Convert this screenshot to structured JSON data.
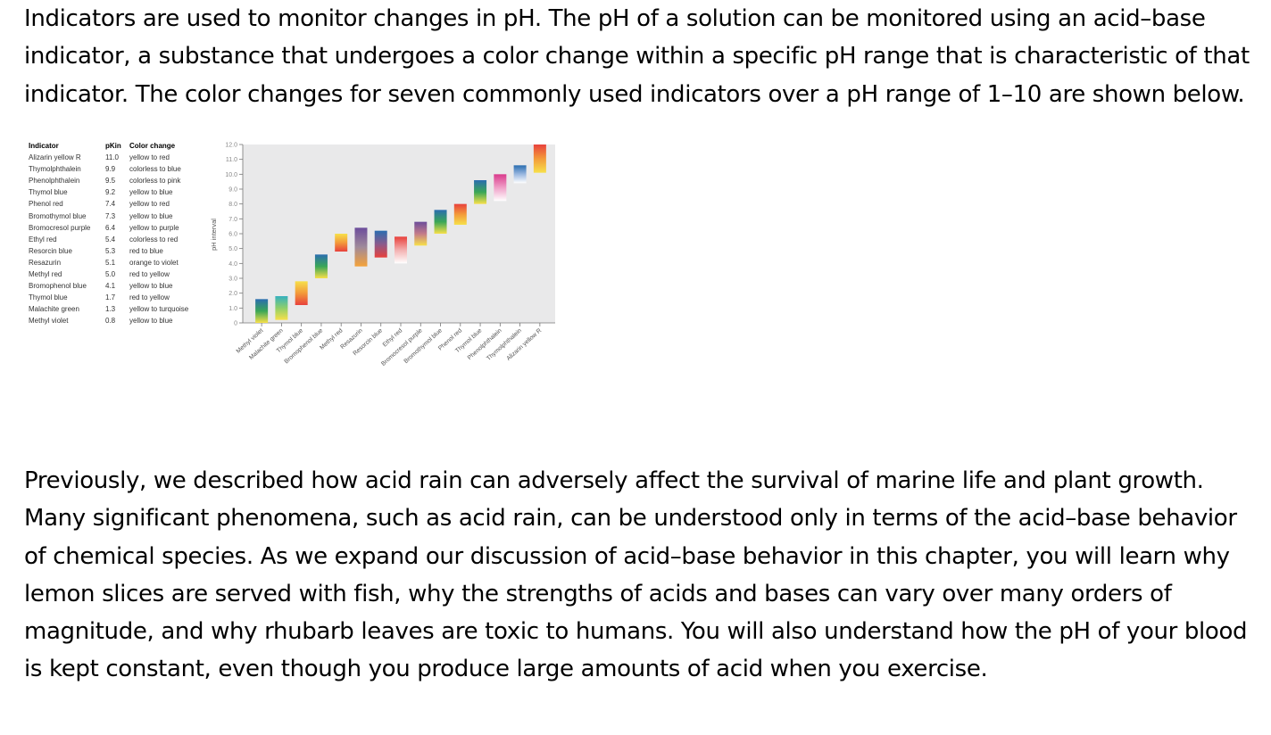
{
  "paragraph_1": "Indicators are used to monitor changes in pH. The pH of a solution can be monitored using an acid–base indicator, a substance that undergoes a color change within a specific pH range that is characteristic of that indicator. The color changes for seven commonly used indicators over a pH range of 1–10 are shown below.",
  "paragraph_2": "Previously, we described how acid rain can adversely affect the survival of marine life and plant growth. Many significant phenomena, such as acid rain, can be understood only in terms of the acid–base behavior of chemical species. As we expand our discussion of acid–base behavior in this chapter, you will learn why lemon slices are served with fish, why the strengths of acids and bases can vary over many orders of magnitude, and why rhubarb leaves are toxic to humans. You will also understand how the pH of your blood is kept constant, even though you produce large amounts of acid when you exercise.",
  "table": {
    "headers": [
      "Indicator",
      "pKin",
      "Color change"
    ],
    "rows": [
      [
        "Alizarin yellow R",
        "11.0",
        "yellow to red"
      ],
      [
        "Thymolphthalein",
        "9.9",
        "colorless to blue"
      ],
      [
        "Phenolphthalein",
        "9.5",
        "colorless to pink"
      ],
      [
        "Thymol blue",
        "9.2",
        "yellow to blue"
      ],
      [
        "Phenol red",
        "7.4",
        "yellow to red"
      ],
      [
        "Bromothymol blue",
        "7.3",
        "yellow to blue"
      ],
      [
        "Bromocresol purple",
        "6.4",
        "yellow to purple"
      ],
      [
        "Ethyl red",
        "5.4",
        "colorless to red"
      ],
      [
        "Resorcin blue",
        "5.3",
        "red to blue"
      ],
      [
        "Resazurin",
        "5.1",
        "orange to violet"
      ],
      [
        "Methyl red",
        "5.0",
        "red to yellow"
      ],
      [
        "Bromophenol blue",
        "4.1",
        "yellow to blue"
      ],
      [
        "Thymol blue",
        "1.7",
        "red to yellow"
      ],
      [
        "Malachite green",
        "1.3",
        "yellow to turquoise"
      ],
      [
        "Methyl violet",
        "0.8",
        "yellow to blue"
      ]
    ]
  },
  "chart_data": {
    "type": "bar",
    "ylabel": "pH interval",
    "ylim": [
      0,
      12
    ],
    "yticks": [
      "0",
      "1.0",
      "2.0",
      "3.0",
      "4.0",
      "5.0",
      "6.0",
      "7.0",
      "8.0",
      "9.0",
      "10.0",
      "11.0",
      "12.0"
    ],
    "bars": [
      {
        "name": "Methyl violet",
        "low": 0.0,
        "high": 1.6,
        "colors": [
          "#f7e04a",
          "#3aa657",
          "#2a6db0"
        ]
      },
      {
        "name": "Malachite green",
        "low": 0.2,
        "high": 1.8,
        "colors": [
          "#f7e04a",
          "#8fcf6a",
          "#36b1bf"
        ]
      },
      {
        "name": "Thymol blue",
        "low": 1.2,
        "high": 2.8,
        "colors": [
          "#e8413c",
          "#f39a3a",
          "#f7e04a"
        ]
      },
      {
        "name": "Bromophenol blue",
        "low": 3.0,
        "high": 4.6,
        "colors": [
          "#f7e04a",
          "#3aa657",
          "#2a6db0"
        ]
      },
      {
        "name": "Methyl red",
        "low": 4.8,
        "high": 6.0,
        "colors": [
          "#e8413c",
          "#f39a3a",
          "#f7e04a"
        ]
      },
      {
        "name": "Resazurin",
        "low": 3.8,
        "high": 6.4,
        "colors": [
          "#f5a23a",
          "#a08a9a",
          "#6c4d9b"
        ]
      },
      {
        "name": "Resorcin blue",
        "low": 4.4,
        "high": 6.2,
        "colors": [
          "#e8413c",
          "#8a5a8c",
          "#2a6db0"
        ]
      },
      {
        "name": "Ethyl red",
        "low": 4.0,
        "high": 5.8,
        "colors": [
          "#ffffff",
          "#f3b0b0",
          "#e8413c"
        ]
      },
      {
        "name": "Bromocresol purple",
        "low": 5.2,
        "high": 6.8,
        "colors": [
          "#f7e04a",
          "#c37b8a",
          "#6c4d9b"
        ]
      },
      {
        "name": "Bromothymol blue",
        "low": 6.0,
        "high": 7.6,
        "colors": [
          "#f7e04a",
          "#3aa657",
          "#2a6db0"
        ]
      },
      {
        "name": "Phenol red",
        "low": 6.6,
        "high": 8.0,
        "colors": [
          "#f7e04a",
          "#f39a3a",
          "#e8413c"
        ]
      },
      {
        "name": "Thymol blue",
        "low": 8.0,
        "high": 9.6,
        "colors": [
          "#f7e04a",
          "#3aa657",
          "#2a6db0"
        ]
      },
      {
        "name": "Phenolphthalein",
        "low": 8.2,
        "high": 10.0,
        "colors": [
          "#ffffff",
          "#f0a0c8",
          "#d93a8c"
        ]
      },
      {
        "name": "Thymolphthalein",
        "low": 9.4,
        "high": 10.6,
        "colors": [
          "#ffffff",
          "#9ab8e0",
          "#2a6db0"
        ]
      },
      {
        "name": "Alizarin yellow R",
        "low": 10.1,
        "high": 12.0,
        "colors": [
          "#f7e04a",
          "#f39a3a",
          "#e8413c"
        ]
      }
    ]
  }
}
